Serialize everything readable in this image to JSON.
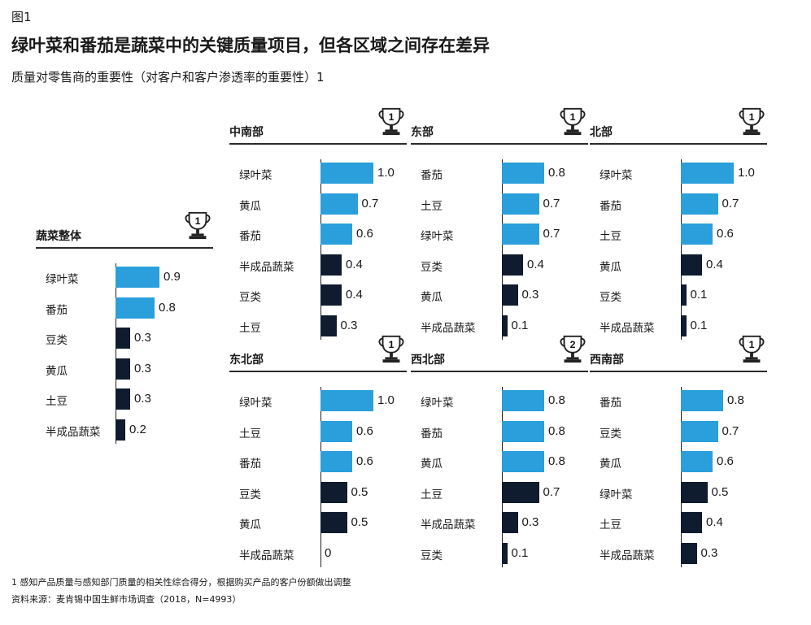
{
  "figure_label": "图1",
  "title": "绿叶菜和番茄是蔬菜中的关键质量项目，但各区域之间存在差异",
  "subtitle": "质量对零售商的重要性（对客户和客户渗透率的重要性）1",
  "footnote": "1 感知产品质量与感知部门质量的相关性综合得分，根据购买产品的客户份额做出调整",
  "source": "资料来源：麦肯锡中国生鲜市场调查（2018，N=4993）",
  "colors": {
    "top_items": "#2a9fdb",
    "other_items": "#0f1b2e"
  },
  "icon": "trophy-icon",
  "chart_data": [
    {
      "id": "overall",
      "type": "bar",
      "title": "蔬菜整体",
      "rank": "1",
      "categories": [
        "绿叶菜",
        "番茄",
        "豆类",
        "黄瓜",
        "土豆",
        "半成品蔬菜"
      ],
      "values": [
        0.9,
        0.8,
        0.3,
        0.3,
        0.3,
        0.2
      ],
      "labels": [
        "0.9",
        "0.8",
        "0.3",
        "0.3",
        "0.3",
        "0.2"
      ],
      "highlighted": [
        true,
        true,
        false,
        false,
        false,
        false
      ],
      "xlim": [
        0,
        1.0
      ]
    },
    {
      "id": "central-south",
      "type": "bar",
      "title": "中南部",
      "rank": "1",
      "categories": [
        "绿叶菜",
        "黄瓜",
        "番茄",
        "半成品蔬菜",
        "豆类",
        "土豆"
      ],
      "values": [
        1.0,
        0.7,
        0.6,
        0.4,
        0.4,
        0.3
      ],
      "labels": [
        "1.0",
        "0.7",
        "0.6",
        "0.4",
        "0.4",
        "0.3"
      ],
      "highlighted": [
        true,
        true,
        true,
        false,
        false,
        false
      ],
      "xlim": [
        0,
        1.0
      ]
    },
    {
      "id": "east",
      "type": "bar",
      "title": "东部",
      "rank": "1",
      "categories": [
        "番茄",
        "土豆",
        "绿叶菜",
        "豆类",
        "黄瓜",
        "半成品蔬菜"
      ],
      "values": [
        0.8,
        0.7,
        0.7,
        0.4,
        0.3,
        0.1
      ],
      "labels": [
        "0.8",
        "0.7",
        "0.7",
        "0.4",
        "0.3",
        "0.1"
      ],
      "highlighted": [
        true,
        true,
        true,
        false,
        false,
        false
      ],
      "xlim": [
        0,
        1.0
      ]
    },
    {
      "id": "north",
      "type": "bar",
      "title": "北部",
      "rank": "1",
      "categories": [
        "绿叶菜",
        "番茄",
        "土豆",
        "黄瓜",
        "豆类",
        "半成品蔬菜"
      ],
      "values": [
        1.0,
        0.7,
        0.6,
        0.4,
        0.1,
        0.1
      ],
      "labels": [
        "1.0",
        "0.7",
        "0.6",
        "0.4",
        "0.1",
        "0.1"
      ],
      "highlighted": [
        true,
        true,
        true,
        false,
        false,
        false
      ],
      "xlim": [
        0,
        1.0
      ]
    },
    {
      "id": "northeast",
      "type": "bar",
      "title": "东北部",
      "rank": "1",
      "categories": [
        "绿叶菜",
        "土豆",
        "番茄",
        "豆类",
        "黄瓜",
        "半成品蔬菜"
      ],
      "values": [
        1.0,
        0.6,
        0.6,
        0.5,
        0.5,
        0
      ],
      "labels": [
        "1.0",
        "0.6",
        "0.6",
        "0.5",
        "0.5",
        "0"
      ],
      "highlighted": [
        true,
        true,
        true,
        false,
        false,
        false
      ],
      "xlim": [
        0,
        1.0
      ]
    },
    {
      "id": "northwest",
      "type": "bar",
      "title": "西北部",
      "rank": "2",
      "categories": [
        "绿叶菜",
        "番茄",
        "黄瓜",
        "土豆",
        "半成品蔬菜",
        "豆类"
      ],
      "values": [
        0.8,
        0.8,
        0.8,
        0.7,
        0.3,
        0.1
      ],
      "labels": [
        "0.8",
        "0.8",
        "0.8",
        "0.7",
        "0.3",
        "0.1"
      ],
      "highlighted": [
        true,
        true,
        true,
        false,
        false,
        false
      ],
      "xlim": [
        0,
        1.0
      ]
    },
    {
      "id": "southwest",
      "type": "bar",
      "title": "西南部",
      "rank": "1",
      "categories": [
        "番茄",
        "豆类",
        "黄瓜",
        "绿叶菜",
        "土豆",
        "半成品蔬菜"
      ],
      "values": [
        0.8,
        0.7,
        0.6,
        0.5,
        0.4,
        0.3
      ],
      "labels": [
        "0.8",
        "0.7",
        "0.6",
        "0.5",
        "0.4",
        "0.3"
      ],
      "highlighted": [
        true,
        true,
        true,
        false,
        false,
        false
      ],
      "xlim": [
        0,
        1.0
      ]
    }
  ]
}
